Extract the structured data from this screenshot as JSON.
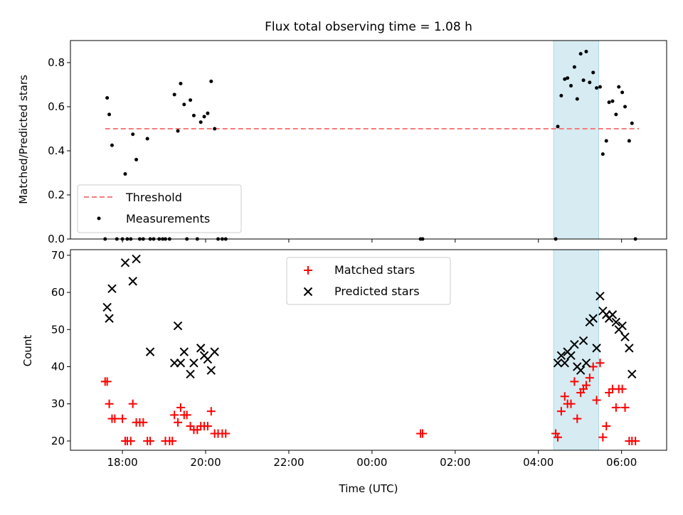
{
  "title": "Flux total observing time = 1.08 h",
  "colors": {
    "threshold": "#f47c7c",
    "measurement": "#000000",
    "matched": "#ff0000",
    "predicted": "#000000",
    "shade": "#add8e6"
  },
  "chart_data": [
    {
      "type": "scatter",
      "ylabel": "Matched/Predicted stars",
      "ylim": [
        0,
        0.9
      ],
      "yticks": [
        {
          "v": 0.0,
          "label": "0.0"
        },
        {
          "v": 0.2,
          "label": "0.2"
        },
        {
          "v": 0.4,
          "label": "0.4"
        },
        {
          "v": 0.6,
          "label": "0.6"
        },
        {
          "v": 0.8,
          "label": "0.8"
        }
      ],
      "legend_position": "lower-left",
      "shaded_interval": [
        "04:22",
        "05:27"
      ],
      "threshold": {
        "name": "Threshold",
        "value": 0.5,
        "x_range": [
          "17:35",
          "06:25"
        ]
      },
      "measurements": {
        "name": "Measurements",
        "points": [
          [
            "17:35",
            0.0
          ],
          [
            "17:38",
            0.64
          ],
          [
            "17:41",
            0.565
          ],
          [
            "17:45",
            0.425
          ],
          [
            "17:52",
            0.0
          ],
          [
            "18:00",
            0.0
          ],
          [
            "18:04",
            0.295
          ],
          [
            "18:07",
            0.0
          ],
          [
            "18:12",
            0.0
          ],
          [
            "18:15",
            0.475
          ],
          [
            "18:20",
            0.36
          ],
          [
            "18:25",
            0.0
          ],
          [
            "18:30",
            0.0
          ],
          [
            "18:36",
            0.455
          ],
          [
            "18:40",
            0.0
          ],
          [
            "18:45",
            0.0
          ],
          [
            "18:53",
            0.0
          ],
          [
            "18:58",
            0.0
          ],
          [
            "19:02",
            0.0
          ],
          [
            "19:08",
            0.0
          ],
          [
            "19:15",
            0.655
          ],
          [
            "19:20",
            0.49
          ],
          [
            "19:24",
            0.705
          ],
          [
            "19:29",
            0.61
          ],
          [
            "19:33",
            0.0
          ],
          [
            "19:38",
            0.63
          ],
          [
            "19:43",
            0.56
          ],
          [
            "19:48",
            0.0
          ],
          [
            "19:53",
            0.53
          ],
          [
            "19:58",
            0.555
          ],
          [
            "20:03",
            0.57
          ],
          [
            "20:08",
            0.715
          ],
          [
            "20:13",
            0.5
          ],
          [
            "20:18",
            0.0
          ],
          [
            "20:24",
            0.0
          ],
          [
            "20:29",
            0.0
          ],
          [
            "01:10",
            0.0
          ],
          [
            "01:13",
            0.0
          ],
          [
            "04:25",
            0.0
          ],
          [
            "04:28",
            0.51
          ],
          [
            "04:33",
            0.65
          ],
          [
            "04:38",
            0.725
          ],
          [
            "04:42",
            0.73
          ],
          [
            "04:47",
            0.695
          ],
          [
            "04:52",
            0.78
          ],
          [
            "04:56",
            0.635
          ],
          [
            "05:01",
            0.84
          ],
          [
            "05:05",
            0.72
          ],
          [
            "05:09",
            0.85
          ],
          [
            "05:14",
            0.71
          ],
          [
            "05:19",
            0.755
          ],
          [
            "05:24",
            0.685
          ],
          [
            "05:29",
            0.69
          ],
          [
            "05:33",
            0.385
          ],
          [
            "05:38",
            0.445
          ],
          [
            "05:42",
            0.62
          ],
          [
            "05:47",
            0.625
          ],
          [
            "05:52",
            0.565
          ],
          [
            "05:56",
            0.69
          ],
          [
            "06:01",
            0.665
          ],
          [
            "06:05",
            0.6
          ],
          [
            "06:11",
            0.445
          ],
          [
            "06:15",
            0.525
          ],
          [
            "06:20",
            0.0
          ]
        ]
      }
    },
    {
      "type": "scatter",
      "xlabel": "Time (UTC)",
      "ylabel": "Count",
      "ylim": [
        17.5,
        71.5
      ],
      "yticks": [
        {
          "v": 20,
          "label": "20"
        },
        {
          "v": 30,
          "label": "30"
        },
        {
          "v": 40,
          "label": "40"
        },
        {
          "v": 50,
          "label": "50"
        },
        {
          "v": 60,
          "label": "60"
        },
        {
          "v": 70,
          "label": "70"
        }
      ],
      "xlim": [
        "16:45",
        "07:05"
      ],
      "xticks": [
        {
          "v": "18:00",
          "label": "18:00"
        },
        {
          "v": "20:00",
          "label": "20:00"
        },
        {
          "v": "22:00",
          "label": "22:00"
        },
        {
          "v": "00:00",
          "label": "00:00"
        },
        {
          "v": "02:00",
          "label": "02:00"
        },
        {
          "v": "04:00",
          "label": "04:00"
        },
        {
          "v": "06:00",
          "label": "06:00"
        }
      ],
      "legend_position": "upper-center",
      "shaded_interval": [
        "04:22",
        "05:27"
      ],
      "series": [
        {
          "name": "Matched stars",
          "marker": "plus",
          "points": [
            [
              "17:35",
              36
            ],
            [
              "17:38",
              36
            ],
            [
              "17:41",
              30
            ],
            [
              "17:45",
              26
            ],
            [
              "17:49",
              26
            ],
            [
              "18:00",
              26
            ],
            [
              "18:04",
              20
            ],
            [
              "18:07",
              20
            ],
            [
              "18:12",
              20
            ],
            [
              "18:15",
              30
            ],
            [
              "18:20",
              25
            ],
            [
              "18:25",
              25
            ],
            [
              "18:30",
              25
            ],
            [
              "18:36",
              20
            ],
            [
              "18:40",
              20
            ],
            [
              "19:02",
              20
            ],
            [
              "19:08",
              20
            ],
            [
              "19:12",
              20
            ],
            [
              "19:15",
              27
            ],
            [
              "19:20",
              25
            ],
            [
              "19:24",
              29
            ],
            [
              "19:29",
              27
            ],
            [
              "19:33",
              27
            ],
            [
              "19:38",
              24
            ],
            [
              "19:43",
              23
            ],
            [
              "19:48",
              23
            ],
            [
              "19:53",
              24
            ],
            [
              "19:58",
              24
            ],
            [
              "20:03",
              24
            ],
            [
              "20:08",
              28
            ],
            [
              "20:13",
              22
            ],
            [
              "20:18",
              22
            ],
            [
              "20:24",
              22
            ],
            [
              "20:29",
              22
            ],
            [
              "01:10",
              22
            ],
            [
              "01:13",
              22
            ],
            [
              "04:25",
              22
            ],
            [
              "04:28",
              21
            ],
            [
              "04:33",
              28
            ],
            [
              "04:38",
              32
            ],
            [
              "04:42",
              30
            ],
            [
              "04:47",
              30
            ],
            [
              "04:52",
              36
            ],
            [
              "04:56",
              26
            ],
            [
              "05:01",
              33
            ],
            [
              "05:05",
              34
            ],
            [
              "05:09",
              35
            ],
            [
              "05:14",
              37
            ],
            [
              "05:19",
              40
            ],
            [
              "05:24",
              31
            ],
            [
              "05:29",
              41
            ],
            [
              "05:33",
              21
            ],
            [
              "05:38",
              24
            ],
            [
              "05:42",
              33
            ],
            [
              "05:47",
              34
            ],
            [
              "05:52",
              29
            ],
            [
              "05:56",
              34
            ],
            [
              "06:01",
              34
            ],
            [
              "06:05",
              29
            ],
            [
              "06:11",
              20
            ],
            [
              "06:15",
              20
            ],
            [
              "06:20",
              20
            ]
          ]
        },
        {
          "name": "Predicted stars",
          "marker": "x",
          "points": [
            [
              "17:38",
              56
            ],
            [
              "17:41",
              53
            ],
            [
              "17:45",
              61
            ],
            [
              "18:04",
              68
            ],
            [
              "18:15",
              63
            ],
            [
              "18:20",
              69
            ],
            [
              "18:40",
              44
            ],
            [
              "19:15",
              41
            ],
            [
              "19:20",
              51
            ],
            [
              "19:24",
              41
            ],
            [
              "19:29",
              44
            ],
            [
              "19:38",
              38
            ],
            [
              "19:43",
              41
            ],
            [
              "19:53",
              45
            ],
            [
              "19:58",
              43
            ],
            [
              "20:03",
              42
            ],
            [
              "20:08",
              39
            ],
            [
              "20:13",
              44
            ],
            [
              "04:28",
              41
            ],
            [
              "04:33",
              43
            ],
            [
              "04:38",
              41
            ],
            [
              "04:42",
              44
            ],
            [
              "04:47",
              43
            ],
            [
              "04:52",
              46
            ],
            [
              "04:56",
              40
            ],
            [
              "05:01",
              39
            ],
            [
              "05:05",
              47
            ],
            [
              "05:09",
              41
            ],
            [
              "05:14",
              52
            ],
            [
              "05:19",
              53
            ],
            [
              "05:24",
              45
            ],
            [
              "05:29",
              59
            ],
            [
              "05:33",
              55
            ],
            [
              "05:38",
              54
            ],
            [
              "05:42",
              53
            ],
            [
              "05:47",
              54
            ],
            [
              "05:52",
              52
            ],
            [
              "05:56",
              50
            ],
            [
              "06:01",
              51
            ],
            [
              "06:05",
              48
            ],
            [
              "06:11",
              45
            ],
            [
              "06:15",
              38
            ]
          ]
        }
      ]
    }
  ]
}
